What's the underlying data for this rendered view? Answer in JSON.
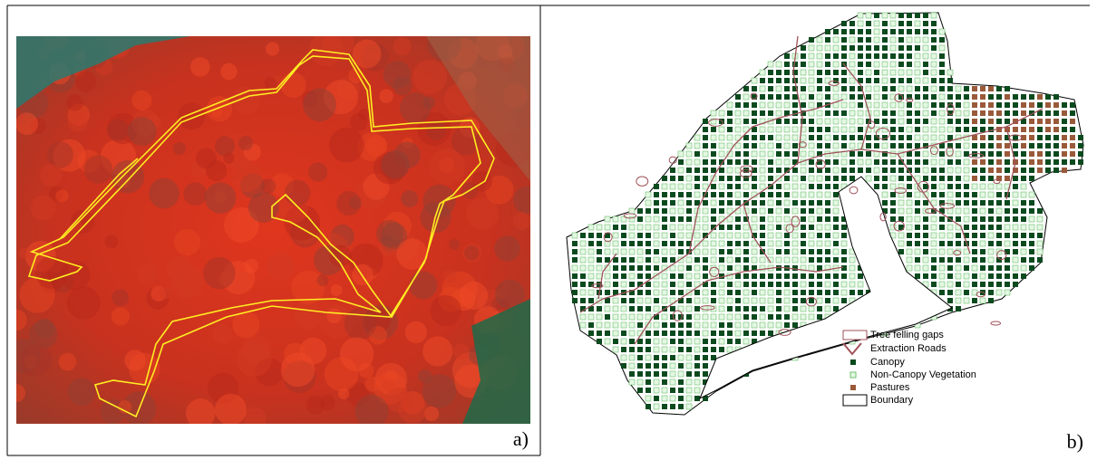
{
  "panels": [
    {
      "label": "a)"
    },
    {
      "label": "b)",
      "legend": [
        "Tree felling gaps",
        "Extraction Roads",
        "Canopy",
        "Non-Canopy Vegetation",
        "Pastures",
        "Boundary"
      ]
    }
  ]
}
